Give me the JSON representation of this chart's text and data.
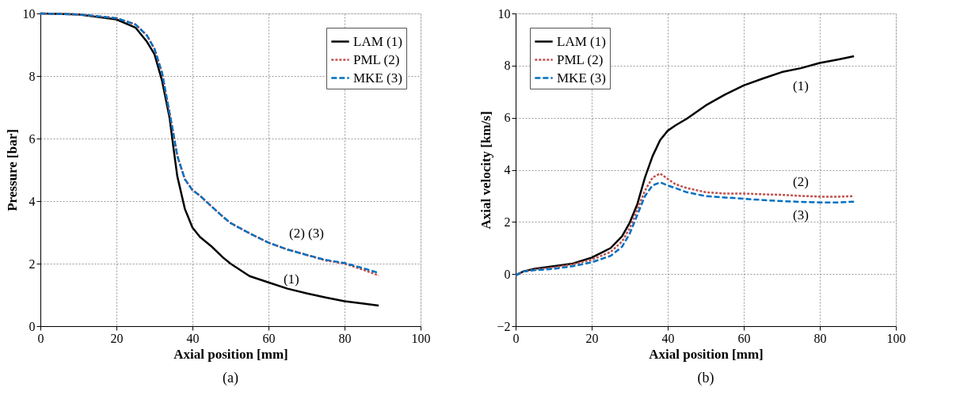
{
  "chart_data": [
    {
      "type": "line",
      "xlabel": "Axial position [mm]",
      "ylabel": "Pressure [bar]",
      "xlim": [
        0,
        100
      ],
      "ylim": [
        0,
        10
      ],
      "xticks": [
        0,
        20,
        40,
        60,
        80,
        100
      ],
      "yticks": [
        0,
        2,
        4,
        6,
        8,
        10
      ],
      "grid": true,
      "legend": "top right",
      "marker": "none",
      "x": [
        0,
        10,
        20,
        25,
        28,
        30,
        32,
        34,
        35,
        36,
        38,
        40,
        42,
        45,
        48,
        50,
        55,
        60,
        65,
        70,
        75,
        80,
        85,
        89
      ],
      "series": [
        {
          "name": "LAM (1)",
          "color": "#000000",
          "line_style": "solid",
          "values": [
            10,
            9.97,
            9.81,
            9.55,
            9.1,
            8.7,
            7.85,
            6.65,
            5.7,
            4.8,
            3.75,
            3.15,
            2.85,
            2.55,
            2.2,
            2.0,
            1.6,
            1.4,
            1.2,
            1.05,
            0.92,
            0.8,
            0.72,
            0.66
          ]
        },
        {
          "name": "PML (2)",
          "color": "#c0504d",
          "line_style": "dotted",
          "values": [
            10,
            9.97,
            9.85,
            9.65,
            9.3,
            8.87,
            8.1,
            6.8,
            6.15,
            5.45,
            4.7,
            4.35,
            4.17,
            3.83,
            3.5,
            3.3,
            2.97,
            2.67,
            2.45,
            2.28,
            2.1,
            2.0,
            1.8,
            1.62
          ]
        },
        {
          "name": "MKE (3)",
          "color": "#0070c0",
          "line_style": "dashed",
          "values": [
            10,
            9.97,
            9.85,
            9.65,
            9.3,
            8.87,
            8.1,
            6.8,
            6.15,
            5.45,
            4.7,
            4.35,
            4.17,
            3.83,
            3.5,
            3.3,
            2.97,
            2.67,
            2.45,
            2.28,
            2.12,
            2.02,
            1.85,
            1.7
          ]
        }
      ],
      "annotations": [
        "(2)  (3)",
        "(1)",
        "(a)"
      ]
    },
    {
      "type": "line",
      "xlabel": "Axial position [mm]",
      "ylabel": "Axial velocity [km/s]",
      "xlim": [
        0,
        100
      ],
      "ylim": [
        -2,
        10
      ],
      "xticks": [
        0,
        20,
        40,
        60,
        80,
        100
      ],
      "yticks": [
        -2,
        0,
        2,
        4,
        6,
        8,
        10
      ],
      "grid": true,
      "legend": "top left",
      "marker": "none",
      "x": [
        0,
        2,
        5,
        10,
        15,
        20,
        25,
        28,
        30,
        32,
        34,
        36,
        38,
        40,
        42,
        45,
        50,
        55,
        60,
        65,
        70,
        75,
        80,
        85,
        89
      ],
      "series": [
        {
          "name": "LAM (1)",
          "color": "#000000",
          "line_style": "solid",
          "values": [
            -0.05,
            0.1,
            0.2,
            0.3,
            0.4,
            0.63,
            1.0,
            1.45,
            1.97,
            2.68,
            3.7,
            4.52,
            5.14,
            5.5,
            5.7,
            5.96,
            6.47,
            6.88,
            7.24,
            7.5,
            7.75,
            7.9,
            8.1,
            8.24,
            8.36
          ]
        },
        {
          "name": "PML (2)",
          "color": "#c0504d",
          "line_style": "dotted",
          "values": [
            -0.05,
            0.1,
            0.17,
            0.25,
            0.37,
            0.55,
            0.85,
            1.25,
            1.76,
            2.48,
            3.2,
            3.7,
            3.86,
            3.65,
            3.45,
            3.3,
            3.14,
            3.09,
            3.09,
            3.06,
            3.04,
            3.0,
            2.97,
            2.97,
            2.99
          ]
        },
        {
          "name": "MKE (3)",
          "color": "#0070c0",
          "line_style": "dashed",
          "values": [
            -0.05,
            0.1,
            0.15,
            0.2,
            0.3,
            0.45,
            0.7,
            1.05,
            1.55,
            2.27,
            2.99,
            3.4,
            3.52,
            3.4,
            3.3,
            3.14,
            2.99,
            2.94,
            2.89,
            2.84,
            2.8,
            2.77,
            2.75,
            2.75,
            2.78
          ]
        }
      ],
      "annotations": [
        "(1)",
        "(2)",
        "(3)",
        "(b)"
      ]
    }
  ]
}
